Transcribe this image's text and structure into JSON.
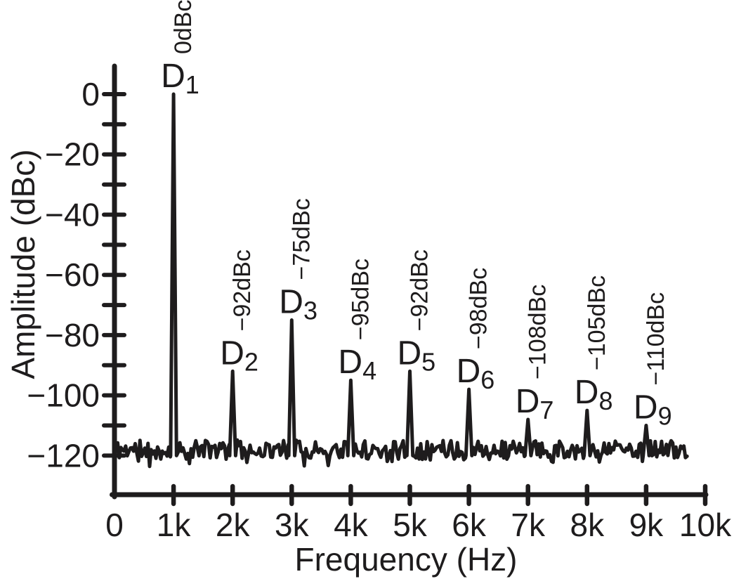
{
  "figure": {
    "background": "#ffffff",
    "ink_color": "#1e1c1d"
  },
  "chart_data": {
    "type": "line",
    "title": "",
    "xlabel": "Frequency (Hz)",
    "ylabel": "Amplitude (dBc)",
    "xlim": [
      0,
      10000
    ],
    "ylim": [
      -120,
      0
    ],
    "grid": false,
    "legend": "none",
    "x_ticks": [
      {
        "value": 0,
        "label": "0",
        "mark": false
      },
      {
        "value": 1000,
        "label": "1k",
        "mark": true
      },
      {
        "value": 2000,
        "label": "2k",
        "mark": true
      },
      {
        "value": 3000,
        "label": "3k",
        "mark": true
      },
      {
        "value": 4000,
        "label": "4k",
        "mark": true
      },
      {
        "value": 5000,
        "label": "5k",
        "mark": true
      },
      {
        "value": 6000,
        "label": "6k",
        "mark": true
      },
      {
        "value": 7000,
        "label": "7k",
        "mark": true
      },
      {
        "value": 8000,
        "label": "8k",
        "mark": true
      },
      {
        "value": 9000,
        "label": "9k",
        "mark": true
      },
      {
        "value": 10000,
        "label": "10k",
        "mark": true
      }
    ],
    "y_major_ticks": [
      {
        "value": 0,
        "label": "0"
      },
      {
        "value": -20,
        "label": "−20"
      },
      {
        "value": -40,
        "label": "−40"
      },
      {
        "value": -60,
        "label": "−60"
      },
      {
        "value": -80,
        "label": "−80"
      },
      {
        "value": -100,
        "label": "−100"
      },
      {
        "value": -120,
        "label": "−120"
      }
    ],
    "y_minor_ticks": [
      -10,
      -30,
      -50,
      -70,
      -90,
      -110
    ],
    "noise_floor_dbc": -118,
    "noise_ripple_db": 3.2,
    "trace_start_hz": 0,
    "trace_end_hz": 9700,
    "peaks": [
      {
        "name": "D",
        "subscript": "1",
        "frequency_hz": 1000,
        "amplitude_dbc": 0,
        "annotation": "0dBc"
      },
      {
        "name": "D",
        "subscript": "2",
        "frequency_hz": 2000,
        "amplitude_dbc": -92,
        "annotation": "−92dBc"
      },
      {
        "name": "D",
        "subscript": "3",
        "frequency_hz": 3000,
        "amplitude_dbc": -75,
        "annotation": "−75dBc"
      },
      {
        "name": "D",
        "subscript": "4",
        "frequency_hz": 4000,
        "amplitude_dbc": -95,
        "annotation": "−95dBc"
      },
      {
        "name": "D",
        "subscript": "5",
        "frequency_hz": 5000,
        "amplitude_dbc": -92,
        "annotation": "−92dBc"
      },
      {
        "name": "D",
        "subscript": "6",
        "frequency_hz": 6000,
        "amplitude_dbc": -98,
        "annotation": "−98dBc"
      },
      {
        "name": "D",
        "subscript": "7",
        "frequency_hz": 7000,
        "amplitude_dbc": -108,
        "annotation": "−108dBc"
      },
      {
        "name": "D",
        "subscript": "8",
        "frequency_hz": 8000,
        "amplitude_dbc": -105,
        "annotation": "−105dBc"
      },
      {
        "name": "D",
        "subscript": "9",
        "frequency_hz": 9000,
        "amplitude_dbc": -110,
        "annotation": "−110dBc"
      }
    ]
  }
}
